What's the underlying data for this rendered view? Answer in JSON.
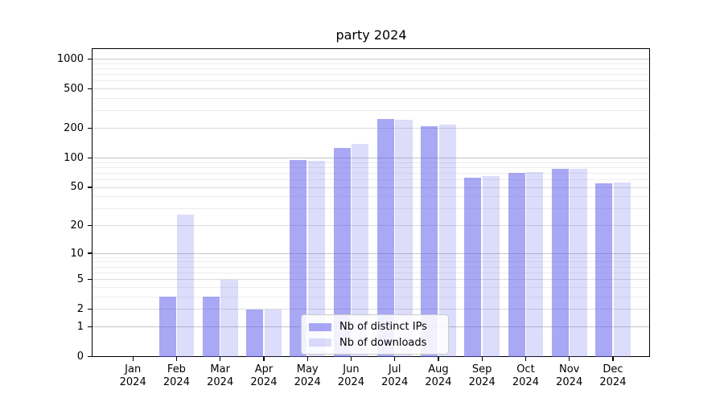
{
  "chart_data": {
    "type": "bar",
    "title": "party 2024",
    "categories": [
      "Jan 2024",
      "Feb 2024",
      "Mar 2024",
      "Apr 2024",
      "May 2024",
      "Jun 2024",
      "Jul 2024",
      "Aug 2024",
      "Sep 2024",
      "Oct 2024",
      "Nov 2024",
      "Dec 2024"
    ],
    "x_tick_lines": [
      [
        "Jan",
        "2024"
      ],
      [
        "Feb",
        "2024"
      ],
      [
        "Mar",
        "2024"
      ],
      [
        "Apr",
        "2024"
      ],
      [
        "May",
        "2024"
      ],
      [
        "Jun",
        "2024"
      ],
      [
        "Jul",
        "2024"
      ],
      [
        "Aug",
        "2024"
      ],
      [
        "Sep",
        "2024"
      ],
      [
        "Oct",
        "2024"
      ],
      [
        "Nov",
        "2024"
      ],
      [
        "Dec",
        "2024"
      ]
    ],
    "series": [
      {
        "name": "Nb of distinct IPs",
        "color": "rgba(96,96,235,0.55)",
        "values": [
          0,
          3,
          3,
          2,
          95,
          126,
          247,
          210,
          63,
          70,
          78,
          55
        ]
      },
      {
        "name": "Nb of downloads",
        "color": "rgba(96,96,235,0.22)",
        "values": [
          0,
          26,
          5,
          2,
          93,
          139,
          244,
          218,
          65,
          71,
          78,
          56
        ]
      }
    ],
    "xlabel": "",
    "ylabel": "",
    "y_scale": "log1p",
    "y_ticks": [
      0,
      1,
      2,
      5,
      10,
      20,
      50,
      100,
      200,
      500,
      1000
    ],
    "y_minor_ticks": [
      3,
      4,
      6,
      7,
      8,
      9,
      30,
      40,
      60,
      70,
      80,
      90,
      300,
      400,
      600,
      700,
      800,
      900
    ],
    "ylim": [
      0,
      1280
    ],
    "grid": "both",
    "legend_position": "lower-center",
    "colors": {
      "bar_base": "#6060eb",
      "grid_major": "#c6c6c6",
      "grid_minor": "#ededed",
      "axis": "#000000",
      "background": "#ffffff"
    }
  }
}
